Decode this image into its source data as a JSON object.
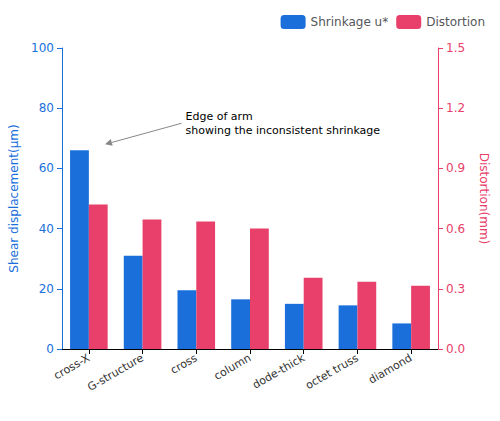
{
  "chart_data": {
    "type": "bar",
    "categories": [
      "cross-X",
      "G-structure",
      "cross",
      "column",
      "dode-thick",
      "octet truss",
      "diamond"
    ],
    "series": [
      {
        "name": "Shrinkage u*",
        "color": "#1a6fdb",
        "values": [
          66,
          31,
          19.5,
          16.5,
          15,
          14.5,
          8.5
        ]
      },
      {
        "name": "Distortion",
        "color": "#e8406a",
        "values": [
          0.72,
          0.645,
          0.635,
          0.6,
          0.355,
          0.335,
          0.315
        ],
        "axis": "y2"
      }
    ],
    "ylabel": "Shear displacement(μm)",
    "y2label": "Distortion(mm)",
    "ylim": [
      0,
      100
    ],
    "yticks": [
      0,
      20,
      40,
      60,
      80,
      100
    ],
    "y2lim": [
      0.0,
      1.5
    ],
    "y2ticks": [
      {
        "value": 0,
        "label": "0.0"
      },
      0.3,
      0.6,
      0.9,
      1.2,
      1.5
    ],
    "legend": "upper right",
    "grid": false,
    "annotations": [
      {
        "text": "Edge of arm\nshowing the inconsistent shrinkage"
      }
    ]
  }
}
